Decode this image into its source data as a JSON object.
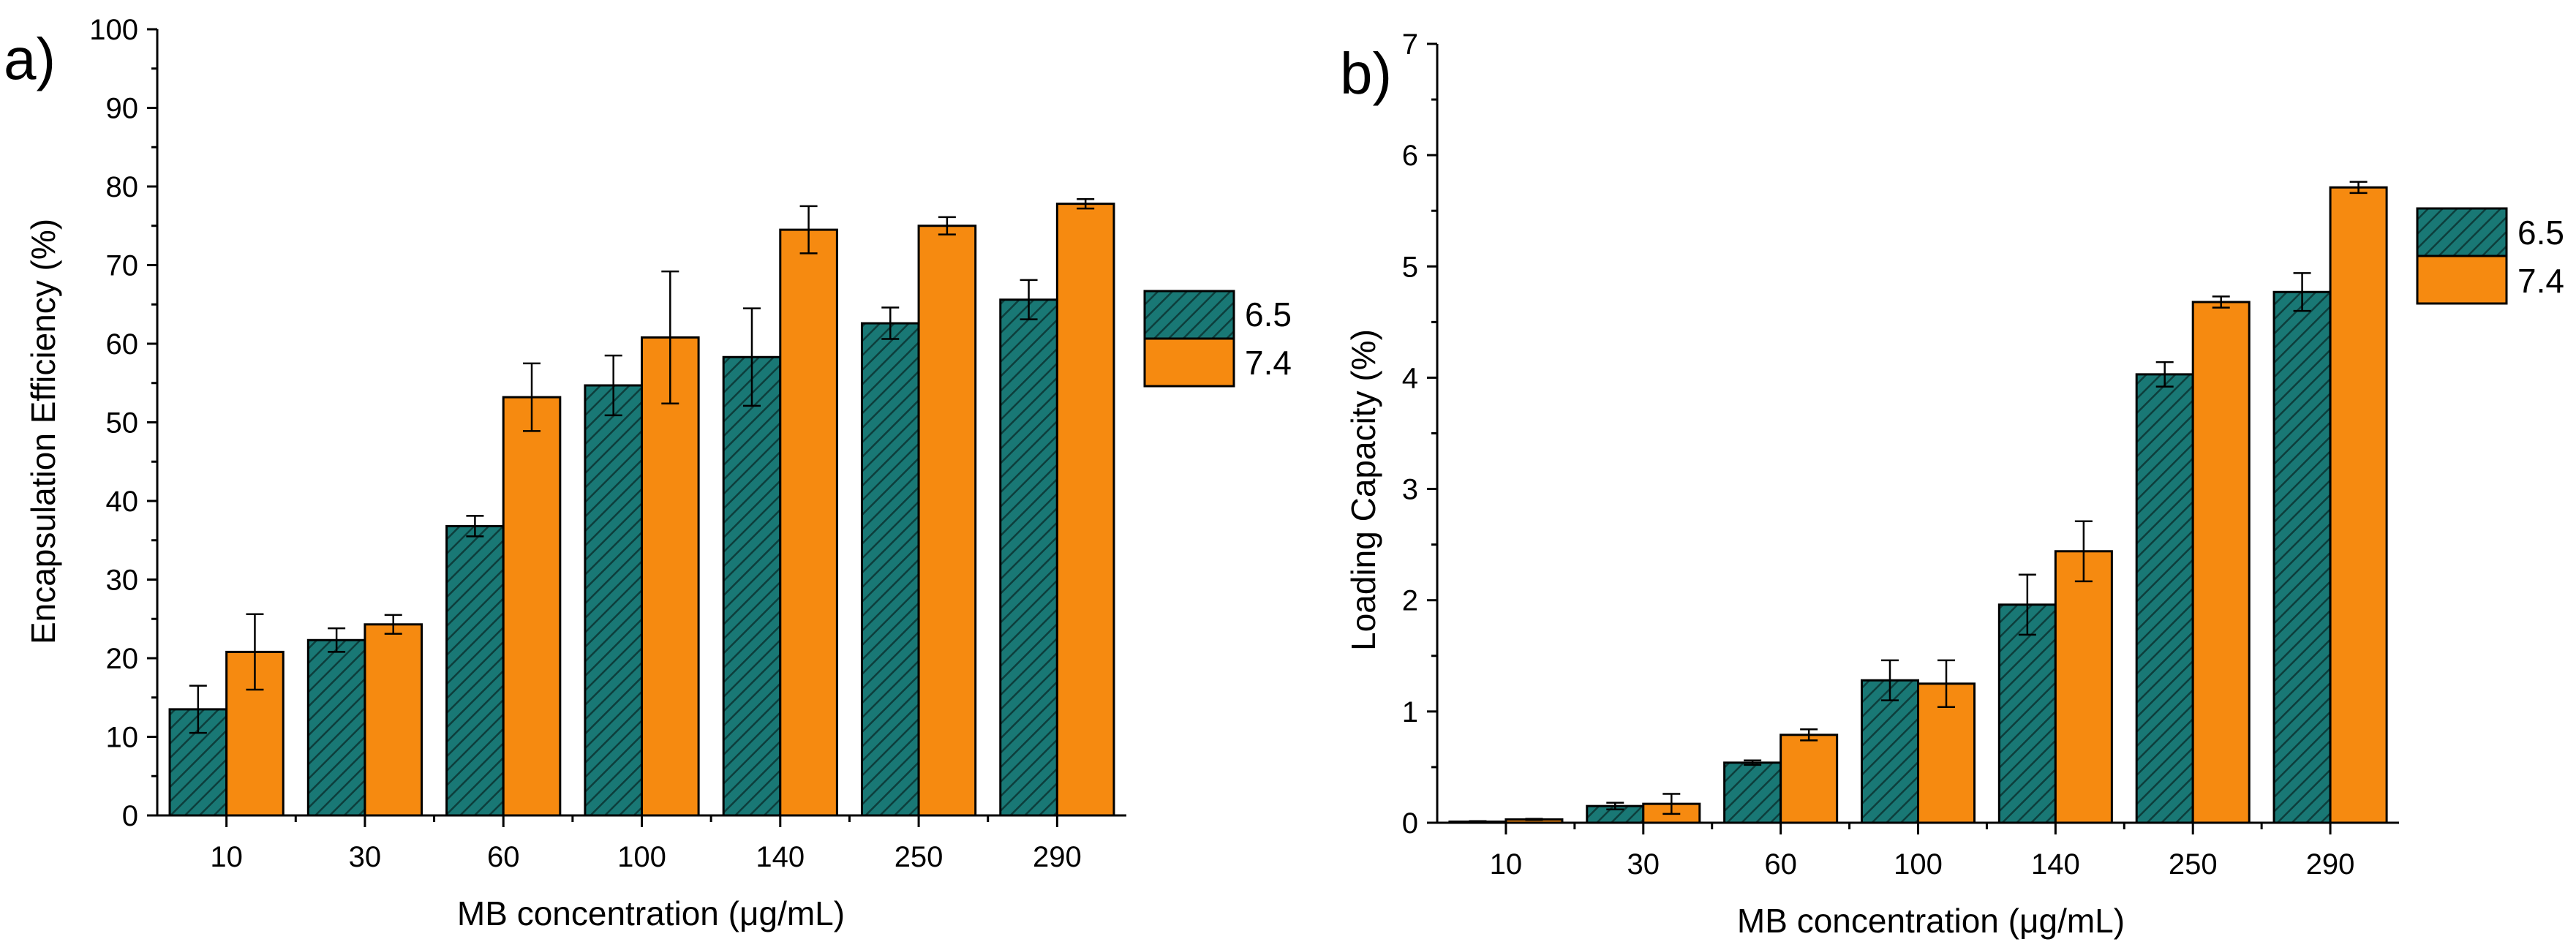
{
  "colors": {
    "series_a": "#197875",
    "series_b": "#f68a10",
    "hatch": "#0d3e3c"
  },
  "chart_data": [
    {
      "type": "bar",
      "panel_label": "a)",
      "ylabel": "Encapsulation Efficiency (%)",
      "xlabel": "MB concentration (μg/mL)",
      "ylim": [
        0,
        100
      ],
      "yticks": [
        0,
        10,
        20,
        30,
        40,
        50,
        60,
        70,
        80,
        90,
        100
      ],
      "categories": [
        "10",
        "30",
        "60",
        "100",
        "140",
        "250",
        "290"
      ],
      "series": [
        {
          "name": "6.5",
          "values": [
            13.5,
            22.3,
            36.8,
            54.7,
            58.3,
            62.6,
            65.6
          ],
          "errors": [
            3.0,
            1.5,
            1.3,
            3.8,
            6.2,
            2.0,
            2.5
          ]
        },
        {
          "name": "7.4",
          "values": [
            20.8,
            24.3,
            53.2,
            60.8,
            74.5,
            75.0,
            77.8
          ],
          "errors": [
            4.8,
            1.2,
            4.3,
            8.4,
            3.0,
            1.1,
            0.6
          ]
        }
      ],
      "legend": "right"
    },
    {
      "type": "bar",
      "panel_label": "b)",
      "ylabel": "Loading Capacity (%)",
      "xlabel": "MB concentration (μg/mL)",
      "ylim": [
        0,
        7
      ],
      "yticks": [
        0,
        1,
        2,
        3,
        4,
        5,
        6,
        7
      ],
      "categories": [
        "10",
        "30",
        "60",
        "100",
        "140",
        "250",
        "290"
      ],
      "series": [
        {
          "name": "6.5",
          "values": [
            0.01,
            0.15,
            0.54,
            1.28,
            1.96,
            4.03,
            4.77
          ],
          "errors": [
            0.005,
            0.03,
            0.02,
            0.18,
            0.27,
            0.11,
            0.17
          ]
        },
        {
          "name": "7.4",
          "values": [
            0.03,
            0.17,
            0.79,
            1.25,
            2.44,
            4.68,
            5.71
          ],
          "errors": [
            0.005,
            0.09,
            0.05,
            0.21,
            0.27,
            0.05,
            0.05
          ]
        }
      ],
      "legend": "right"
    }
  ]
}
